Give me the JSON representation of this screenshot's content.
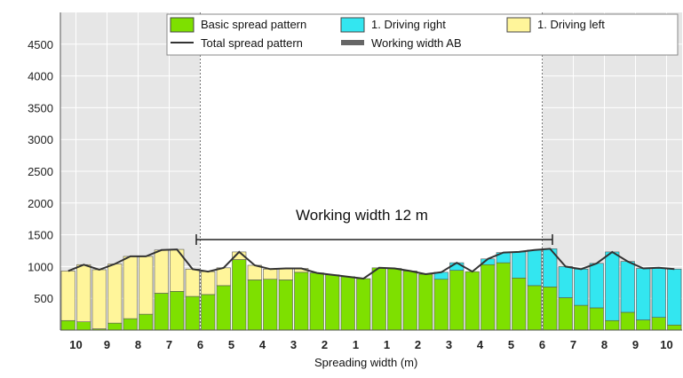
{
  "chart_data": {
    "type": "bar",
    "xlabel": "Spreading width (m)",
    "ylim": [
      0,
      5000
    ],
    "yticks": [
      500,
      1000,
      1500,
      2000,
      2500,
      3000,
      3500,
      4000,
      4500
    ],
    "xticks": [
      "10",
      "9",
      "8",
      "7",
      "6",
      "5",
      "4",
      "3",
      "2",
      "1",
      "1",
      "2",
      "3",
      "4",
      "5",
      "6",
      "7",
      "8",
      "9",
      "10"
    ],
    "legend": {
      "placement": "top",
      "items": [
        {
          "label": "Basic spread pattern",
          "kind": "box",
          "color": "#7ee000"
        },
        {
          "label": "1. Driving right",
          "kind": "box",
          "color": "#33e6f0"
        },
        {
          "label": "1. Driving left",
          "kind": "box",
          "color": "#fff59a"
        },
        {
          "label": "Total spread pattern",
          "kind": "line",
          "color": "#333333"
        },
        {
          "label": "Working width AB",
          "kind": "bar",
          "color": "#666666"
        }
      ]
    },
    "annotation": {
      "text": "Working width 12 m"
    },
    "colors": {
      "basic": "#7ee000",
      "right": "#33e6f0",
      "left": "#fff59a",
      "total_line": "#333333",
      "bar_outline": "#555555"
    },
    "series": [
      {
        "name": "Basic spread pattern",
        "values": [
          150,
          130,
          20,
          110,
          180,
          250,
          580,
          610,
          530,
          560,
          700,
          1110,
          790,
          800,
          790,
          910,
          900,
          870,
          840,
          810,
          980,
          970,
          930,
          880,
          800,
          940,
          920,
          1030,
          1060,
          820,
          700,
          680,
          510,
          390,
          350,
          150,
          280,
          160,
          200,
          80
        ]
      },
      {
        "name": "1. Driving right",
        "values": [
          0,
          0,
          0,
          0,
          0,
          0,
          0,
          0,
          0,
          0,
          0,
          0,
          0,
          0,
          0,
          0,
          0,
          0,
          0,
          0,
          0,
          0,
          0,
          0,
          110,
          120,
          0,
          90,
          160,
          410,
          560,
          600,
          490,
          570,
          700,
          1080,
          800,
          810,
          780,
          880
        ]
      },
      {
        "name": "1. Driving left",
        "values": [
          780,
          900,
          930,
          930,
          980,
          910,
          680,
          660,
          430,
          360,
          280,
          120,
          230,
          160,
          180,
          60,
          0,
          0,
          0,
          0,
          0,
          0,
          0,
          0,
          0,
          0,
          0,
          0,
          0,
          0,
          0,
          0,
          0,
          0,
          0,
          0,
          0,
          0,
          0,
          0
        ]
      }
    ]
  }
}
